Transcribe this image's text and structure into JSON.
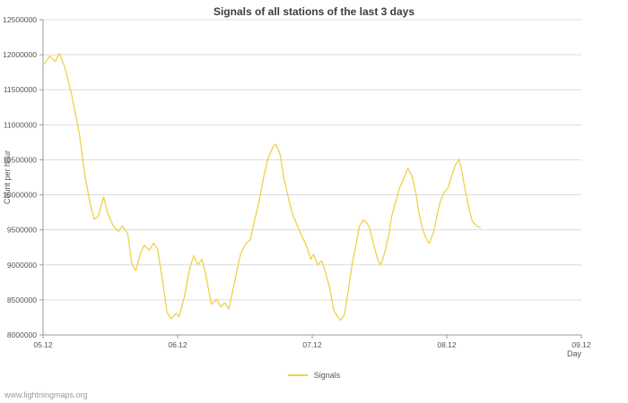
{
  "colors": {
    "background": "#ffffff",
    "line": "#edd24a",
    "grid": "#dcdcdc",
    "axis": "#9a9a9a",
    "text": "#555555",
    "title": "#3c3c3c",
    "watermark": "#9a9a9a"
  },
  "footer": {
    "watermark": "www.lightningmaps.org"
  },
  "chart_data": {
    "type": "line",
    "title": "Signals of all stations of the last 3 days",
    "xlabel": "Day",
    "ylabel": "Count per hour",
    "xlim": [
      0,
      4
    ],
    "ylim": [
      8000000,
      12500000
    ],
    "grid": "horizontal",
    "legend": [
      "Signals"
    ],
    "legend_position": "bottom-center",
    "xticks": [
      {
        "value": 0,
        "label": "05.12"
      },
      {
        "value": 1,
        "label": "06.12"
      },
      {
        "value": 2,
        "label": "07.12"
      },
      {
        "value": 3,
        "label": "08.12"
      },
      {
        "value": 4,
        "label": "09.12"
      }
    ],
    "yticks": [
      {
        "value": 8000000,
        "label": "8000000"
      },
      {
        "value": 8500000,
        "label": "8500000"
      },
      {
        "value": 9000000,
        "label": "9000000"
      },
      {
        "value": 9500000,
        "label": "9500000"
      },
      {
        "value": 10000000,
        "label": "10000000"
      },
      {
        "value": 10500000,
        "label": "10500000"
      },
      {
        "value": 11000000,
        "label": "11000000"
      },
      {
        "value": 11500000,
        "label": "11500000"
      },
      {
        "value": 12000000,
        "label": "12000000"
      },
      {
        "value": 12500000,
        "label": "12500000"
      }
    ],
    "series": [
      {
        "name": "Signals",
        "color": "#edd24a",
        "x_unit": "days since 05.12",
        "points": [
          [
            0.01,
            11870000
          ],
          [
            0.05,
            11980000
          ],
          [
            0.09,
            11900000
          ],
          [
            0.12,
            12020000
          ],
          [
            0.16,
            11830000
          ],
          [
            0.21,
            11450000
          ],
          [
            0.27,
            10870000
          ],
          [
            0.31,
            10290000
          ],
          [
            0.35,
            9870000
          ],
          [
            0.38,
            9650000
          ],
          [
            0.41,
            9690000
          ],
          [
            0.45,
            9970000
          ],
          [
            0.48,
            9740000
          ],
          [
            0.52,
            9560000
          ],
          [
            0.56,
            9480000
          ],
          [
            0.59,
            9560000
          ],
          [
            0.63,
            9440000
          ],
          [
            0.66,
            9010000
          ],
          [
            0.69,
            8920000
          ],
          [
            0.72,
            9140000
          ],
          [
            0.75,
            9280000
          ],
          [
            0.79,
            9210000
          ],
          [
            0.82,
            9310000
          ],
          [
            0.85,
            9230000
          ],
          [
            0.89,
            8760000
          ],
          [
            0.92,
            8330000
          ],
          [
            0.95,
            8230000
          ],
          [
            0.99,
            8310000
          ],
          [
            1.01,
            8260000
          ],
          [
            1.05,
            8540000
          ],
          [
            1.09,
            8950000
          ],
          [
            1.12,
            9130000
          ],
          [
            1.15,
            9000000
          ],
          [
            1.18,
            9080000
          ],
          [
            1.21,
            8850000
          ],
          [
            1.25,
            8440000
          ],
          [
            1.29,
            8510000
          ],
          [
            1.32,
            8400000
          ],
          [
            1.35,
            8460000
          ],
          [
            1.38,
            8370000
          ],
          [
            1.41,
            8630000
          ],
          [
            1.45,
            9010000
          ],
          [
            1.47,
            9170000
          ],
          [
            1.51,
            9310000
          ],
          [
            1.54,
            9360000
          ],
          [
            1.57,
            9620000
          ],
          [
            1.61,
            9950000
          ],
          [
            1.64,
            10260000
          ],
          [
            1.67,
            10510000
          ],
          [
            1.71,
            10690000
          ],
          [
            1.73,
            10720000
          ],
          [
            1.76,
            10590000
          ],
          [
            1.79,
            10230000
          ],
          [
            1.83,
            9900000
          ],
          [
            1.86,
            9690000
          ],
          [
            1.89,
            9560000
          ],
          [
            1.93,
            9380000
          ],
          [
            1.95,
            9310000
          ],
          [
            1.99,
            9080000
          ],
          [
            2.01,
            9150000
          ],
          [
            2.04,
            9000000
          ],
          [
            2.07,
            9060000
          ],
          [
            2.09,
            8950000
          ],
          [
            2.13,
            8670000
          ],
          [
            2.16,
            8350000
          ],
          [
            2.19,
            8260000
          ],
          [
            2.21,
            8210000
          ],
          [
            2.24,
            8290000
          ],
          [
            2.27,
            8670000
          ],
          [
            2.3,
            9050000
          ],
          [
            2.33,
            9330000
          ],
          [
            2.35,
            9550000
          ],
          [
            2.38,
            9640000
          ],
          [
            2.41,
            9590000
          ],
          [
            2.43,
            9510000
          ],
          [
            2.46,
            9260000
          ],
          [
            2.49,
            9060000
          ],
          [
            2.51,
            9000000
          ],
          [
            2.54,
            9180000
          ],
          [
            2.57,
            9440000
          ],
          [
            2.59,
            9690000
          ],
          [
            2.62,
            9900000
          ],
          [
            2.65,
            10100000
          ],
          [
            2.69,
            10280000
          ],
          [
            2.71,
            10380000
          ],
          [
            2.74,
            10280000
          ],
          [
            2.77,
            10030000
          ],
          [
            2.79,
            9770000
          ],
          [
            2.82,
            9510000
          ],
          [
            2.85,
            9360000
          ],
          [
            2.87,
            9310000
          ],
          [
            2.9,
            9460000
          ],
          [
            2.93,
            9720000
          ],
          [
            2.95,
            9900000
          ],
          [
            2.98,
            10030000
          ],
          [
            3.01,
            10100000
          ],
          [
            3.03,
            10230000
          ],
          [
            3.06,
            10410000
          ],
          [
            3.09,
            10510000
          ],
          [
            3.11,
            10360000
          ],
          [
            3.14,
            10030000
          ],
          [
            3.17,
            9770000
          ],
          [
            3.19,
            9620000
          ],
          [
            3.22,
            9560000
          ],
          [
            3.25,
            9530000
          ]
        ]
      }
    ]
  }
}
